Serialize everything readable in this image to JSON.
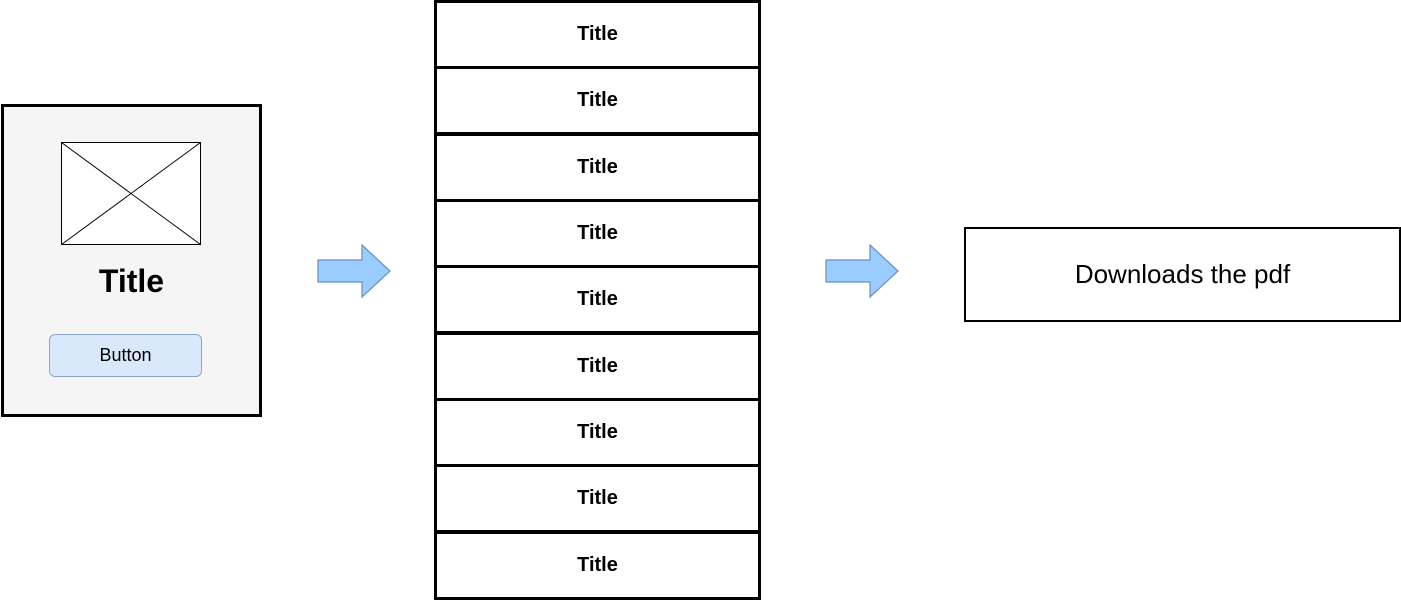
{
  "card": {
    "image_icon": "image-placeholder-icon",
    "title": "Title",
    "button_label": "Button",
    "button_color": "#dae8fc"
  },
  "arrow_color": "#99ccff",
  "list": {
    "items": [
      {
        "label": "Title"
      },
      {
        "label": "Title"
      },
      {
        "label": "Title"
      },
      {
        "label": "Title"
      },
      {
        "label": "Title"
      },
      {
        "label": "Title"
      },
      {
        "label": "Title"
      },
      {
        "label": "Title"
      },
      {
        "label": "Title"
      }
    ]
  },
  "result": {
    "label": "Downloads the pdf"
  }
}
